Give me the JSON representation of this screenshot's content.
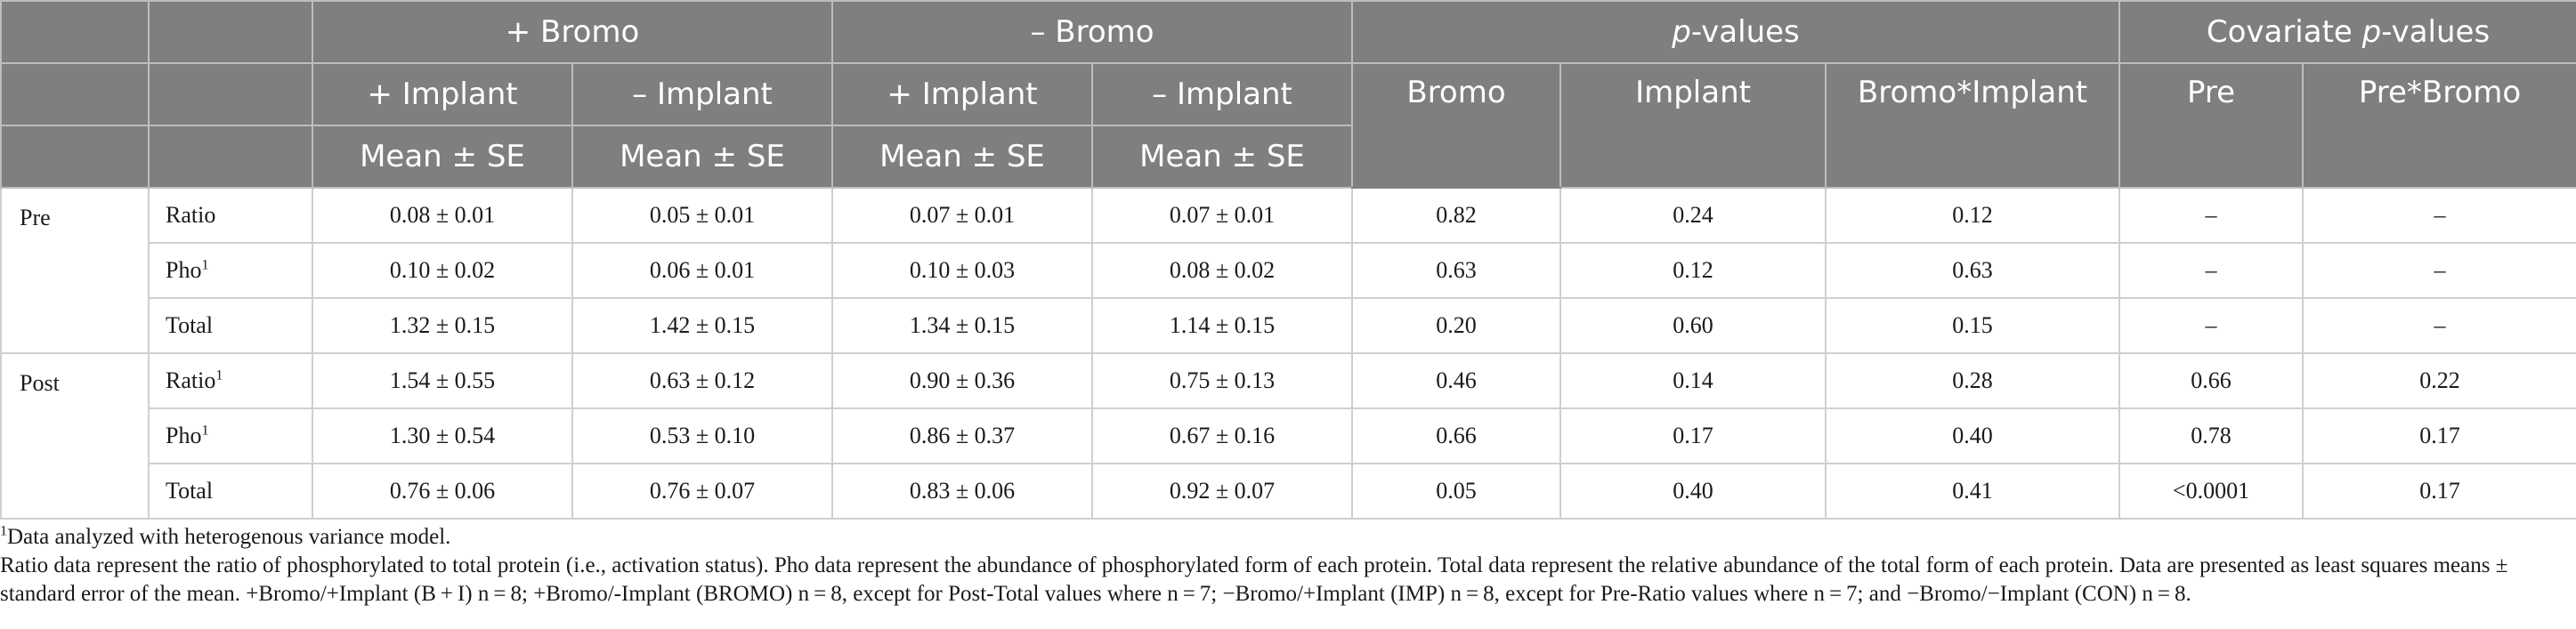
{
  "header": {
    "groups": [
      "+ Bromo",
      "– Bromo",
      "p-values",
      "Covariate p-values"
    ],
    "pvalues_italic": "p",
    "pvalues_rest": "-values",
    "covariate_prefix": "Covariate ",
    "covariate_italic": "p",
    "covariate_rest": "-values",
    "sub": [
      "+ Implant",
      "– Implant",
      "+ Implant",
      "– Implant",
      "Bromo",
      "Implant",
      "Bromo*Implant",
      "Pre",
      "Pre*Bromo"
    ],
    "stat": "Mean ± SE"
  },
  "rows": [
    {
      "group": "Pre",
      "label": "Ratio",
      "sup": "",
      "cells": [
        "0.08 ± 0.01",
        "0.05 ± 0.01",
        "0.07 ± 0.01",
        "0.07 ± 0.01",
        "0.82",
        "0.24",
        "0.12",
        "–",
        "–"
      ]
    },
    {
      "group": "",
      "label": "Pho",
      "sup": "1",
      "cells": [
        "0.10 ± 0.02",
        "0.06 ± 0.01",
        "0.10 ± 0.03",
        "0.08 ± 0.02",
        "0.63",
        "0.12",
        "0.63",
        "–",
        "–"
      ]
    },
    {
      "group": "",
      "label": "Total",
      "sup": "",
      "cells": [
        "1.32 ± 0.15",
        "1.42 ± 0.15",
        "1.34 ± 0.15",
        "1.14 ± 0.15",
        "0.20",
        "0.60",
        "0.15",
        "–",
        "–"
      ]
    },
    {
      "group": "Post",
      "label": "Ratio",
      "sup": "1",
      "cells": [
        "1.54 ± 0.55",
        "0.63 ± 0.12",
        "0.90 ± 0.36",
        "0.75 ± 0.13",
        "0.46",
        "0.14",
        "0.28",
        "0.66",
        "0.22"
      ]
    },
    {
      "group": "",
      "label": "Pho",
      "sup": "1",
      "cells": [
        "1.30 ± 0.54",
        "0.53 ± 0.10",
        "0.86 ± 0.37",
        "0.67 ± 0.16",
        "0.66",
        "0.17",
        "0.40",
        "0.78",
        "0.17"
      ]
    },
    {
      "group": "",
      "label": "Total",
      "sup": "",
      "cells": [
        "0.76 ± 0.06",
        "0.76 ± 0.07",
        "0.83 ± 0.06",
        "0.92 ± 0.07",
        "0.05",
        "0.40",
        "0.41",
        "<0.0001",
        "0.17"
      ]
    }
  ],
  "notes": {
    "footnote_mark": "1",
    "footnote": "Data analyzed with heterogenous variance model.",
    "description": "Ratio data represent the ratio of phosphorylated to total protein (i.e., activation status). Pho data represent the abundance of phosphorylated form of each protein. Total data represent the relative abundance of the total form of each protein. Data are presented as least squares means ± standard error of the mean. +Bromo/+Implant (B + I) n = 8; +Bromo/-Implant (BROMO) n = 8, except for Post-Total values where n = 7; −Bromo/+Implant (IMP) n = 8, except for Pre-Ratio values where n = 7; and −Bromo/−Implant (CON) n = 8."
  }
}
